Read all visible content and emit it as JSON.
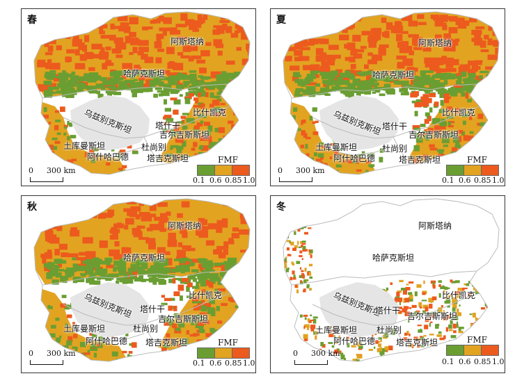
{
  "colors": {
    "class1": "#6a9e32",
    "class2": "#e2a321",
    "class3": "#ec5a1e",
    "boundary": "#bbbbbb",
    "desert": "#e5e5e5",
    "star": "#d21f1f"
  },
  "legend": {
    "title": "FMF",
    "ticks": [
      "0.1",
      "0.6",
      "0.85",
      "1.0"
    ]
  },
  "scale": {
    "zero": "0",
    "dist": "300 km"
  },
  "panels": [
    {
      "season": "春",
      "labels": {
        "astana": "阿斯塔纳",
        "kazakhstan": "哈萨克斯坦",
        "bishkek": "比什凯克",
        "uzbekistan": "乌兹别克斯坦",
        "tashkent": "塔什干",
        "kyrgyzstan": "吉尔吉斯斯坦",
        "turkmenistan": "土库曼斯坦",
        "dushanbe": "杜尚别",
        "ashgabat": "阿什哈巴德",
        "tajikistan": "塔吉克斯坦"
      }
    },
    {
      "season": "夏",
      "labels": {
        "astana": "阿斯塔纳",
        "kazakhstan": "哈萨克斯坦",
        "bishkek": "比什凯克",
        "uzbekistan": "乌兹别克斯坦",
        "tashkent": "塔什干",
        "kyrgyzstan": "吉尔吉斯斯坦",
        "turkmenistan": "土库曼斯坦",
        "dushanbe": "杜尚别",
        "ashgabat": "阿什哈巴德",
        "tajikistan": "塔吉克斯坦"
      }
    },
    {
      "season": "秋",
      "labels": {
        "astana": "阿斯塔纳",
        "kazakhstan": "哈萨克斯坦",
        "bishkek": "比什凯克",
        "uzbekistan": "乌兹别克斯坦",
        "tashkent": "塔什干",
        "kyrgyzstan": "吉尔吉斯斯坦",
        "turkmenistan": "土库曼斯坦",
        "dushanbe": "杜尚别",
        "ashgabat": "阿什哈巴德",
        "tajikistan": "塔吉克斯坦"
      }
    },
    {
      "season": "冬",
      "labels": {
        "astana": "阿斯塔纳",
        "kazakhstan": "哈萨克斯坦",
        "bishkek": "比什凯克",
        "uzbekistan": "乌兹别克斯坦",
        "tashkent": "塔什干",
        "kyrgyzstan": "吉尔吉斯斯坦",
        "turkmenistan": "土库曼斯坦",
        "dushanbe": "杜尚别",
        "ashgabat": "阿什哈巴德",
        "tajikistan": "塔吉克斯坦"
      }
    }
  ]
}
